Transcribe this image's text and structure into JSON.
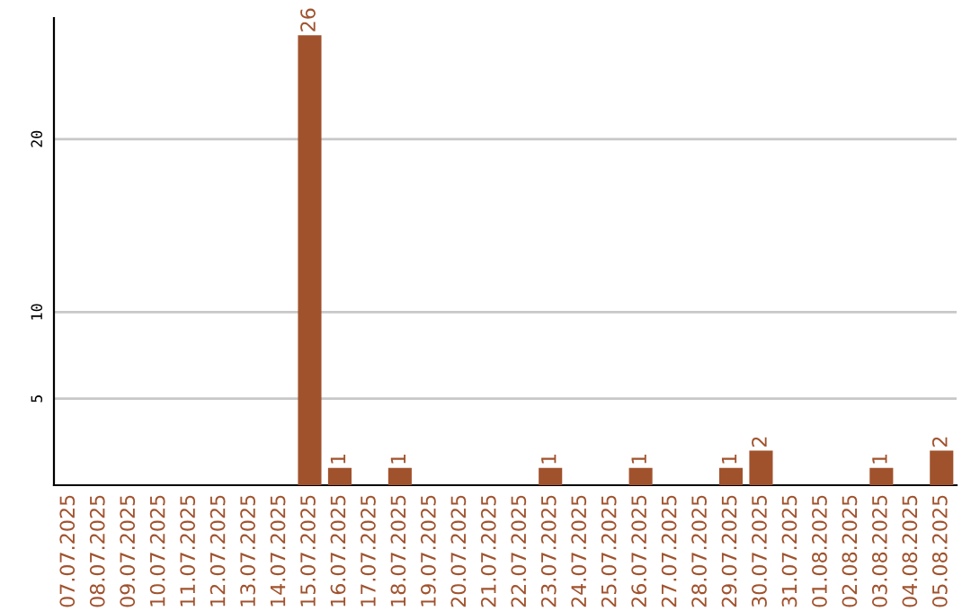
{
  "chart_data": {
    "type": "bar",
    "categories": [
      "07.07.2025",
      "08.07.2025",
      "09.07.2025",
      "10.07.2025",
      "11.07.2025",
      "12.07.2025",
      "13.07.2025",
      "14.07.2025",
      "15.07.2025",
      "16.07.2025",
      "17.07.2025",
      "18.07.2025",
      "19.07.2025",
      "20.07.2025",
      "21.07.2025",
      "22.07.2025",
      "23.07.2025",
      "24.07.2025",
      "25.07.2025",
      "26.07.2025",
      "27.07.2025",
      "28.07.2025",
      "29.07.2025",
      "30.07.2025",
      "31.07.2025",
      "01.08.2025",
      "02.08.2025",
      "03.08.2025",
      "04.08.2025",
      "05.08.2025"
    ],
    "values": [
      0,
      0,
      0,
      0,
      0,
      0,
      0,
      0,
      26,
      1,
      0,
      1,
      0,
      0,
      0,
      0,
      1,
      0,
      0,
      1,
      0,
      0,
      1,
      2,
      0,
      0,
      0,
      1,
      0,
      2
    ],
    "value_labels": [
      null,
      null,
      null,
      null,
      null,
      null,
      null,
      null,
      "26",
      "1",
      null,
      "1",
      null,
      null,
      null,
      null,
      "1",
      null,
      null,
      "1",
      null,
      null,
      "1",
      "2",
      null,
      null,
      null,
      "1",
      null,
      "2"
    ],
    "color": "#a0522d",
    "ylim": [
      0,
      27
    ],
    "yticks": [
      5,
      10,
      20
    ],
    "grid": "y",
    "legend": false
  }
}
